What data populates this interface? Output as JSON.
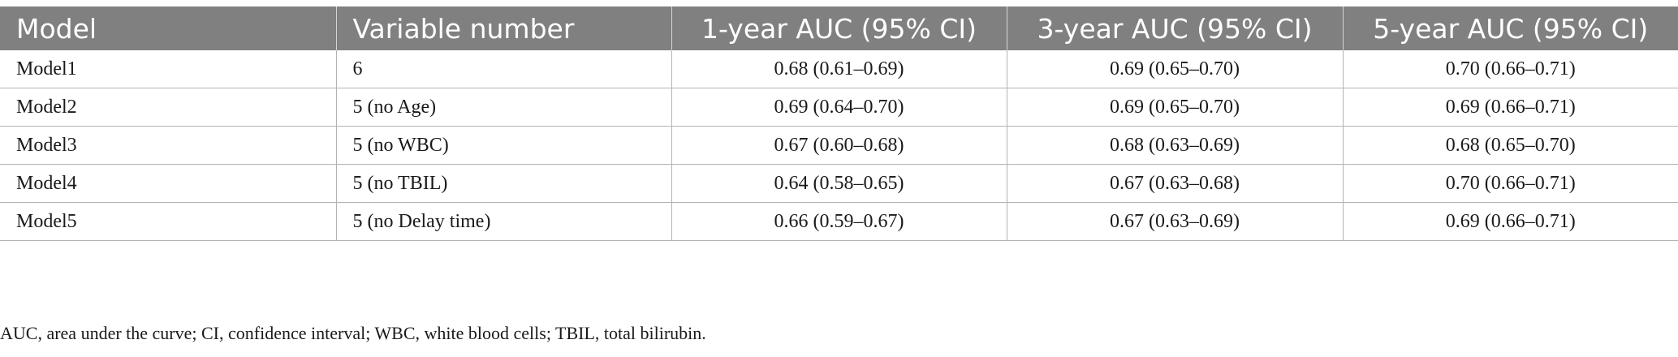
{
  "table": {
    "headers": [
      "Model",
      "Variable number",
      "1-year AUC (95% CI)",
      "3-year AUC (95% CI)",
      "5-year AUC (95% CI)"
    ],
    "rows": [
      [
        "Model1",
        "6",
        "0.68 (0.61–0.69)",
        "0.69 (0.65–0.70)",
        "0.70 (0.66–0.71)"
      ],
      [
        "Model2",
        "5 (no Age)",
        "0.69 (0.64–0.70)",
        "0.69 (0.65–0.70)",
        "0.69 (0.66–0.71)"
      ],
      [
        "Model3",
        "5 (no WBC)",
        "0.67 (0.60–0.68)",
        "0.68 (0.63–0.69)",
        "0.68 (0.65–0.70)"
      ],
      [
        "Model4",
        "5 (no TBIL)",
        "0.64 (0.58–0.65)",
        "0.67 (0.63–0.68)",
        "0.70 (0.66–0.71)"
      ],
      [
        "Model5",
        "5 (no Delay time)",
        "0.66 (0.59–0.67)",
        "0.67 (0.63–0.69)",
        "0.69 (0.66–0.71)"
      ]
    ]
  },
  "footnote": "AUC, area under the curve; CI, confidence interval; WBC, white blood cells; TBIL, total bilirubin.",
  "colors": {
    "header_background": "#808080",
    "header_text": "#ffffff",
    "row_border": "#b3b3b3"
  }
}
